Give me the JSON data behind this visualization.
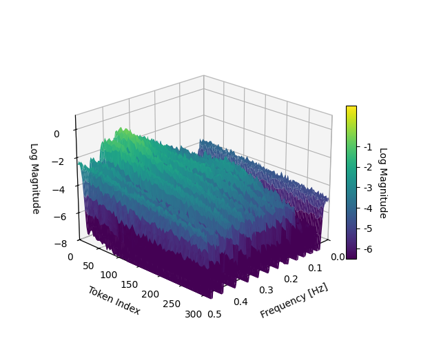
{
  "xlabel": "Frequency [Hz]",
  "ylabel": "Token Index",
  "zlabel": "Log Magnitude",
  "colorbar_label": "Log Magnitude",
  "freq_min": 0.0,
  "freq_max": 0.5,
  "freq_ticks": [
    0.0,
    0.1,
    0.2,
    0.3,
    0.4,
    0.5
  ],
  "token_min": 0,
  "token_max": 300,
  "token_ticks": [
    0,
    50,
    100,
    150,
    200,
    250,
    300
  ],
  "z_ticks": [
    0,
    -2,
    -4,
    -6,
    -8
  ],
  "colorbar_ticks": [
    -1,
    -2,
    -3,
    -4,
    -5,
    -6
  ],
  "colormap": "viridis",
  "n_freq": 150,
  "n_token": 80,
  "figsize": [
    6.4,
    5.23
  ],
  "dpi": 100,
  "elev": 22,
  "azim": -135,
  "vmin": -6.5,
  "vmax": 1.0
}
